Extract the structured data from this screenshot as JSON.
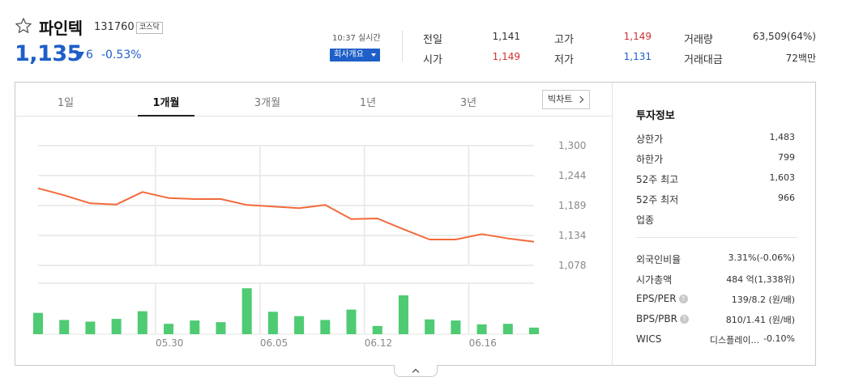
{
  "header": {
    "name": "파인텍",
    "code": "131760",
    "market": "코스닥",
    "price": "1,135",
    "change": "6",
    "change_rate": "-0.53%",
    "realtime": "10:37 실시간",
    "company_btn": "회사개요",
    "price_color": "#1e5fc8"
  },
  "quote": {
    "prev_close_label": "전일",
    "prev_close": "1,141",
    "open_label": "시가",
    "open": "1,149",
    "high_label": "고가",
    "high": "1,149",
    "low_label": "저가",
    "low": "1,131",
    "volume_label": "거래량",
    "volume": "63,509(64%)",
    "amount_label": "거래대금",
    "amount": "72백만"
  },
  "tabs": [
    {
      "label": "1일"
    },
    {
      "label": "1개월",
      "active": true
    },
    {
      "label": "3개월"
    },
    {
      "label": "1년"
    },
    {
      "label": "3년"
    }
  ],
  "bigchart_label": "빅차트",
  "chart_data": {
    "type": "line",
    "period": "1개월",
    "y_ticks": [
      "1,300",
      "1,244",
      "1,189",
      "1,134",
      "1,078"
    ],
    "ylim": [
      1078,
      1300
    ],
    "x_ticks": [
      "05.30",
      "06.05",
      "06.12",
      "06.16"
    ],
    "line_color": "#f26a3a",
    "volume_color": "#4ecb73",
    "series": [
      {
        "values": [
          1221,
          1208,
          1193,
          1191,
          1214,
          1203,
          1201,
          1201,
          1190,
          1187,
          1184,
          1190,
          1164,
          1165,
          1145,
          1126,
          1126,
          1136,
          1128,
          1122
        ]
      }
    ],
    "volume": [
      39,
      26,
      23,
      28,
      42,
      19,
      25,
      22,
      84,
      41,
      33,
      26,
      45,
      15,
      71,
      27,
      25,
      18,
      19,
      12
    ],
    "volume_unit": "relative (no axis printed)"
  },
  "info": {
    "title": "투자정보",
    "upper_limit_label": "상한가",
    "upper_limit": "1,483",
    "lower_limit_label": "하한가",
    "lower_limit": "799",
    "high52_label": "52주 최고",
    "high52": "1,603",
    "low52_label": "52주 최저",
    "low52": "966",
    "sector_label": "업종",
    "foreign_label": "외국인비율",
    "foreign": "3.31%(-0.06%)",
    "mktcap_label": "시가총액",
    "mktcap": "484 억(1,338위)",
    "eps_label": "EPS/PER",
    "eps": "139/8.2 (원/배)",
    "bps_label": "BPS/PBR",
    "bps": "810/1.41 (원/배)",
    "wics_label": "WICS",
    "wics_sector": "디스플레이...",
    "wics_change": "-0.10%"
  }
}
